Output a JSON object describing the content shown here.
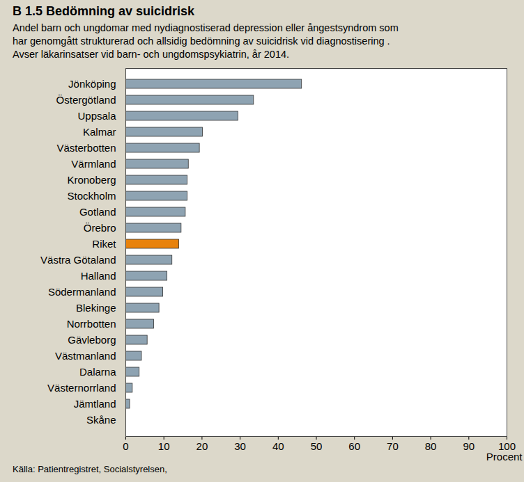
{
  "chart_data": {
    "type": "bar",
    "orientation": "horizontal",
    "title": "B 1.5 Bedömning av suicidrisk",
    "subtitle": [
      "Andel barn och ungdomar med nydiagnostiserad depression eller ångestsyndrom som",
      "har genomgått strukturerad och allsidig bedömning av suicidrisk vid diagnostisering .",
      "Avser läkarinsatser vid barn- och ungdomspsykiatrin, år 2014."
    ],
    "source": "Källa: Patientregistret, Socialstyrelsen,",
    "x_label": "Procent",
    "categories": [
      "Jönköping",
      "Östergötland",
      "Uppsala",
      "Kalmar",
      "Västerbotten",
      "Värmland",
      "Kronoberg",
      "Stockholm",
      "Gotland",
      "Örebro",
      "Riket",
      "Västra Götaland",
      "Halland",
      "Södermanland",
      "Blekinge",
      "Norrbotten",
      "Gävleborg",
      "Västmanland",
      "Dalarna",
      "Västernorrland",
      "Jämtland",
      "Skåne"
    ],
    "values": [
      46.2,
      33.6,
      29.5,
      20.2,
      19.4,
      16.5,
      16.2,
      16.2,
      15.7,
      14.6,
      14.0,
      12.2,
      10.9,
      9.8,
      8.8,
      7.4,
      5.7,
      4.2,
      3.6,
      1.8,
      1.1,
      0
    ],
    "colors": [
      "#8ea3b2",
      "#8ea3b2",
      "#8ea3b2",
      "#8ea3b2",
      "#8ea3b2",
      "#8ea3b2",
      "#8ea3b2",
      "#8ea3b2",
      "#8ea3b2",
      "#8ea3b2",
      "#e8820c",
      "#8ea3b2",
      "#8ea3b2",
      "#8ea3b2",
      "#8ea3b2",
      "#8ea3b2",
      "#8ea3b2",
      "#8ea3b2",
      "#8ea3b2",
      "#8ea3b2",
      "#8ea3b2",
      "#8ea3b2"
    ],
    "xlim": [
      0,
      100
    ],
    "xticks": [
      0,
      10,
      20,
      30,
      40,
      50,
      60,
      70,
      80,
      90,
      100
    ],
    "grid": false
  }
}
